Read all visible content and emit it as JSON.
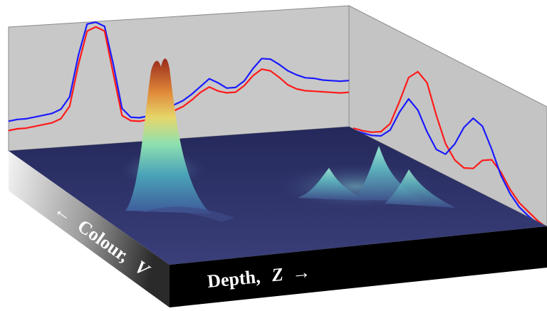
{
  "chart_data": {
    "type": "surface",
    "title": "",
    "xlabel": "Depth,",
    "xlabel_symbol": "Z",
    "xlabel_arrow": "→",
    "ylabel_arrow": "←",
    "ylabel": "Colour,",
    "ylabel_symbol": "V",
    "projections": [
      {
        "name": "back-wall",
        "series": [
          {
            "color": "#1a1aff",
            "values": [
              0.18,
              0.19,
              0.19,
              0.2,
              0.21,
              0.22,
              0.25,
              0.35,
              0.7,
              0.96,
              0.97,
              0.93,
              0.6,
              0.22,
              0.14,
              0.13,
              0.14,
              0.16,
              0.2,
              0.22,
              0.25,
              0.3,
              0.36,
              0.42,
              0.38,
              0.33,
              0.33,
              0.38,
              0.48,
              0.56,
              0.55,
              0.5,
              0.44,
              0.4,
              0.37,
              0.36,
              0.34,
              0.33,
              0.32,
              0.32
            ]
          },
          {
            "color": "#ff1a1a",
            "values": [
              0.1,
              0.11,
              0.11,
              0.12,
              0.13,
              0.14,
              0.17,
              0.27,
              0.62,
              0.9,
              0.93,
              0.89,
              0.52,
              0.16,
              0.11,
              0.1,
              0.11,
              0.13,
              0.15,
              0.17,
              0.2,
              0.25,
              0.31,
              0.35,
              0.31,
              0.29,
              0.29,
              0.34,
              0.42,
              0.47,
              0.45,
              0.39,
              0.32,
              0.28,
              0.26,
              0.25,
              0.24,
              0.23,
              0.22,
              0.22
            ]
          }
        ]
      },
      {
        "name": "side-wall",
        "series": [
          {
            "color": "#ff1a1a",
            "values": [
              0.08,
              0.1,
              0.13,
              0.18,
              0.3,
              0.55,
              0.82,
              0.92,
              0.86,
              0.6,
              0.38,
              0.27,
              0.24,
              0.28,
              0.4,
              0.45,
              0.38,
              0.26,
              0.18,
              0.14,
              0.1,
              0.08
            ]
          },
          {
            "color": "#1a1aff",
            "values": [
              0.06,
              0.08,
              0.1,
              0.14,
              0.24,
              0.45,
              0.62,
              0.56,
              0.4,
              0.28,
              0.28,
              0.42,
              0.62,
              0.75,
              0.72,
              0.55,
              0.35,
              0.22,
              0.14,
              0.1,
              0.07,
              0.05
            ]
          }
        ]
      }
    ],
    "peaks": [
      {
        "name": "main",
        "depth": 0.18,
        "colour": 0.05,
        "height": 1.0
      },
      {
        "name": "secondary",
        "depth": 0.72,
        "colour": 0.22,
        "height": 0.42
      },
      {
        "name": "secondary-b",
        "depth": 0.66,
        "colour": 0.32,
        "height": 0.28
      },
      {
        "name": "minor",
        "depth": 0.78,
        "colour": 0.4,
        "height": 0.18
      }
    ],
    "colormap": [
      "#2c3470",
      "#3e5a9a",
      "#4aa3b8",
      "#6fd6c8",
      "#d8d070",
      "#e08a3a",
      "#b83020"
    ],
    "colors": {
      "walls": "#c8c8c8",
      "floor": "#2a2d62",
      "front_face": "#000000",
      "left_face_light": "#ffffff",
      "left_face_dark": "#3a3a3a"
    }
  }
}
